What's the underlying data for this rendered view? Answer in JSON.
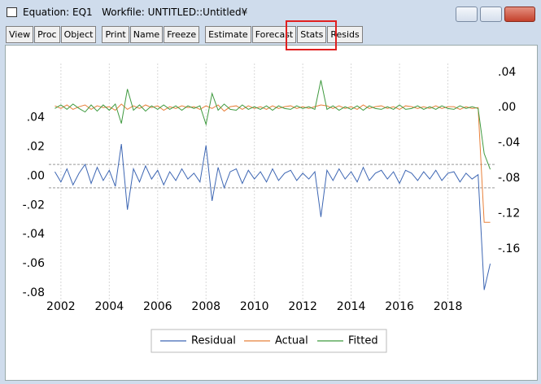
{
  "window": {
    "title": "Equation: EQ1   Workfile: UNTITLED::Untitled¥"
  },
  "toolbar": {
    "groups": [
      [
        "View",
        "Proc",
        "Object"
      ],
      [
        "Print",
        "Name",
        "Freeze"
      ],
      [
        "Estimate",
        "Forecast",
        "Stats",
        "Resids"
      ]
    ]
  },
  "chart_data": {
    "type": "line",
    "x": [
      2001.75,
      2002,
      2002.25,
      2002.5,
      2002.75,
      2003,
      2003.25,
      2003.5,
      2003.75,
      2004,
      2004.25,
      2004.5,
      2004.75,
      2005,
      2005.25,
      2005.5,
      2005.75,
      2006,
      2006.25,
      2006.5,
      2006.75,
      2007,
      2007.25,
      2007.5,
      2007.75,
      2008,
      2008.25,
      2008.5,
      2008.75,
      2009,
      2009.25,
      2009.5,
      2009.75,
      2010,
      2010.25,
      2010.5,
      2010.75,
      2011,
      2011.25,
      2011.5,
      2011.75,
      2012,
      2012.25,
      2012.5,
      2012.75,
      2013,
      2013.25,
      2013.5,
      2013.75,
      2014,
      2014.25,
      2014.5,
      2014.75,
      2015,
      2015.25,
      2015.5,
      2015.75,
      2016,
      2016.25,
      2016.5,
      2016.75,
      2017,
      2017.25,
      2017.5,
      2017.75,
      2018,
      2018.25,
      2018.5,
      2018.75,
      2019,
      2019.25,
      2019.5,
      2019.75
    ],
    "series": [
      {
        "name": "Residual",
        "color": "#3d66b3",
        "axis": "y",
        "values": [
          0.003,
          -0.004,
          0.005,
          -0.006,
          0.002,
          0.008,
          -0.005,
          0.006,
          -0.003,
          0.004,
          -0.007,
          0.022,
          -0.023,
          0.005,
          -0.004,
          0.007,
          -0.002,
          0.004,
          -0.006,
          0.003,
          -0.003,
          0.005,
          -0.002,
          0.002,
          -0.004,
          0.021,
          -0.017,
          0.006,
          -0.008,
          0.003,
          0.005,
          -0.005,
          0.004,
          -0.002,
          0.003,
          -0.004,
          0.005,
          -0.003,
          0.002,
          0.004,
          -0.003,
          0.002,
          -0.002,
          0.003,
          -0.028,
          0.004,
          -0.003,
          0.005,
          -0.002,
          0.003,
          -0.004,
          0.006,
          -0.003,
          0.002,
          0.004,
          -0.002,
          0.003,
          -0.005,
          0.004,
          0.002,
          -0.003,
          0.003,
          -0.002,
          0.004,
          -0.003,
          0.002,
          0.003,
          -0.004,
          0.002,
          -0.002,
          0.001,
          -0.078,
          -0.06
        ]
      },
      {
        "name": "Actual",
        "color": "#e8803a",
        "axis": "y2",
        "values": [
          0.002,
          -0.001,
          0.003,
          -0.002,
          0.001,
          0.003,
          -0.002,
          0.002,
          0.0,
          0.001,
          -0.003,
          0.004,
          -0.002,
          0.002,
          -0.001,
          0.003,
          0.0,
          0.002,
          -0.003,
          0.001,
          -0.001,
          0.002,
          0.0,
          0.001,
          -0.002,
          0.002,
          -0.001,
          0.003,
          -0.004,
          0.001,
          0.002,
          -0.002,
          0.002,
          -0.001,
          0.001,
          -0.002,
          0.002,
          -0.001,
          0.001,
          0.002,
          -0.001,
          0.001,
          -0.001,
          0.001,
          0.003,
          0.002,
          -0.001,
          0.002,
          -0.001,
          0.001,
          -0.002,
          0.003,
          -0.001,
          0.001,
          0.002,
          -0.001,
          0.001,
          -0.002,
          0.002,
          0.001,
          -0.001,
          0.001,
          -0.001,
          0.002,
          -0.001,
          0.001,
          0.001,
          -0.002,
          0.001,
          -0.001,
          0.0,
          -0.13,
          -0.13
        ]
      },
      {
        "name": "Fitted",
        "color": "#3f9a3f",
        "axis": "y2",
        "values": [
          -0.001,
          0.003,
          -0.002,
          0.004,
          -0.001,
          -0.005,
          0.003,
          -0.004,
          0.003,
          -0.003,
          0.004,
          -0.018,
          0.021,
          -0.003,
          0.003,
          -0.004,
          0.002,
          -0.002,
          0.003,
          -0.002,
          0.002,
          -0.003,
          0.002,
          -0.001,
          0.002,
          -0.019,
          0.016,
          -0.003,
          0.004,
          -0.002,
          -0.003,
          0.003,
          -0.002,
          0.001,
          -0.002,
          0.002,
          -0.003,
          0.002,
          -0.001,
          -0.002,
          0.002,
          -0.001,
          0.001,
          -0.002,
          0.031,
          -0.002,
          0.002,
          -0.003,
          0.001,
          -0.002,
          0.002,
          -0.003,
          0.002,
          -0.001,
          -0.002,
          0.001,
          -0.002,
          0.003,
          -0.002,
          -0.001,
          0.002,
          -0.002,
          0.001,
          -0.002,
          0.002,
          -0.001,
          -0.002,
          0.002,
          -0.001,
          0.001,
          -0.001,
          -0.052,
          -0.07
        ]
      }
    ],
    "xlim": [
      2001.5,
      2020.0
    ],
    "xticks": [
      2002,
      2004,
      2006,
      2008,
      2010,
      2012,
      2014,
      2016,
      2018
    ],
    "ylim": [
      -0.0867,
      0.0772
    ],
    "yticks": [
      {
        "value": 0.04,
        "label": ".04"
      },
      {
        "value": 0.02,
        "label": ".02"
      },
      {
        "value": 0,
        "label": ".00"
      },
      {
        "value": -0.02,
        "label": "-.02"
      },
      {
        "value": -0.04,
        "label": "-.04"
      },
      {
        "value": -0.06,
        "label": "-.06"
      },
      {
        "value": -0.08,
        "label": "-.08"
      }
    ],
    "y2lim": [
      -0.221,
      0.05
    ],
    "y2ticks": [
      {
        "value": 0.04,
        "label": ".04"
      },
      {
        "value": 0,
        "label": ".00"
      },
      {
        "value": -0.04,
        "label": "-.04"
      },
      {
        "value": -0.08,
        "label": "-.08"
      },
      {
        "value": -0.12,
        "label": "-.12"
      },
      {
        "value": -0.16,
        "label": "-.16"
      }
    ],
    "reference_lines": [
      0.008,
      -0.008
    ],
    "grid": true,
    "legend": "bottom"
  }
}
